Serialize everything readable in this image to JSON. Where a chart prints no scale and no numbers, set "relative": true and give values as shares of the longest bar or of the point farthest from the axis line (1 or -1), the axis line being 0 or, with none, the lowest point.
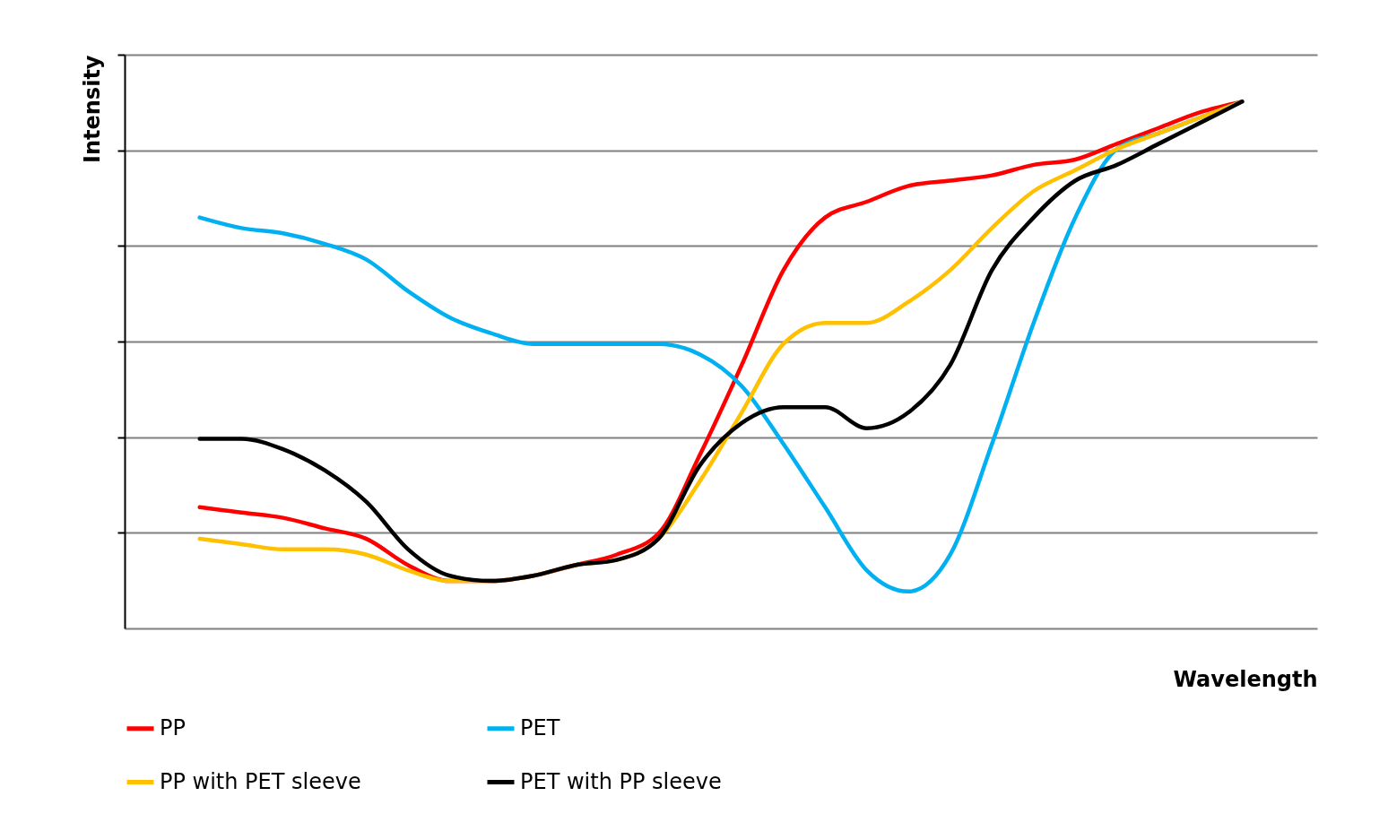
{
  "chart_data": {
    "type": "line",
    "relative": true,
    "xlabel": "Wavelength",
    "ylabel": "Intensity",
    "grid": "y",
    "legend": "bottom",
    "line_style": "solid",
    "marker": "none",
    "categories": [
      null,
      null,
      null,
      null,
      null,
      null,
      null,
      null,
      null,
      null,
      null,
      null,
      null,
      null,
      null,
      null,
      null,
      null,
      null,
      null,
      null,
      null,
      null,
      null,
      null,
      null
    ],
    "series": [
      {
        "name": "PP",
        "color": "#ff0000",
        "values": [
          0.23,
          0.22,
          0.21,
          0.19,
          0.17,
          0.12,
          0.09,
          0.09,
          0.1,
          0.12,
          0.14,
          0.18,
          0.33,
          0.5,
          0.68,
          0.78,
          0.81,
          0.84,
          0.85,
          0.86,
          0.88,
          0.89,
          0.92,
          0.95,
          0.98,
          1
        ]
      },
      {
        "name": "PET",
        "color": "#00b0f0",
        "values": [
          0.78,
          0.76,
          0.75,
          0.73,
          0.7,
          0.64,
          0.59,
          0.56,
          0.54,
          0.54,
          0.54,
          0.54,
          0.52,
          0.46,
          0.35,
          0.23,
          0.11,
          0.07,
          0.14,
          0.35,
          0.58,
          0.78,
          0.91,
          0.94,
          0.97,
          1
        ]
      },
      {
        "name": "PP with PET sleeve",
        "color": "#ffc000",
        "values": [
          0.17,
          0.16,
          0.15,
          0.15,
          0.14,
          0.11,
          0.09,
          0.09,
          0.1,
          0.12,
          0.13,
          0.17,
          0.28,
          0.41,
          0.54,
          0.58,
          0.58,
          0.62,
          0.68,
          0.76,
          0.83,
          0.87,
          0.91,
          0.94,
          0.97,
          1
        ]
      },
      {
        "name": "PET with PP sleeve",
        "color": "#000000",
        "values": [
          0.36,
          0.36,
          0.34,
          0.3,
          0.24,
          0.15,
          0.1,
          0.09,
          0.1,
          0.12,
          0.13,
          0.17,
          0.31,
          0.39,
          0.42,
          0.42,
          0.38,
          0.41,
          0.5,
          0.68,
          0.78,
          0.85,
          0.88,
          0.92,
          0.96,
          1
        ]
      }
    ]
  }
}
